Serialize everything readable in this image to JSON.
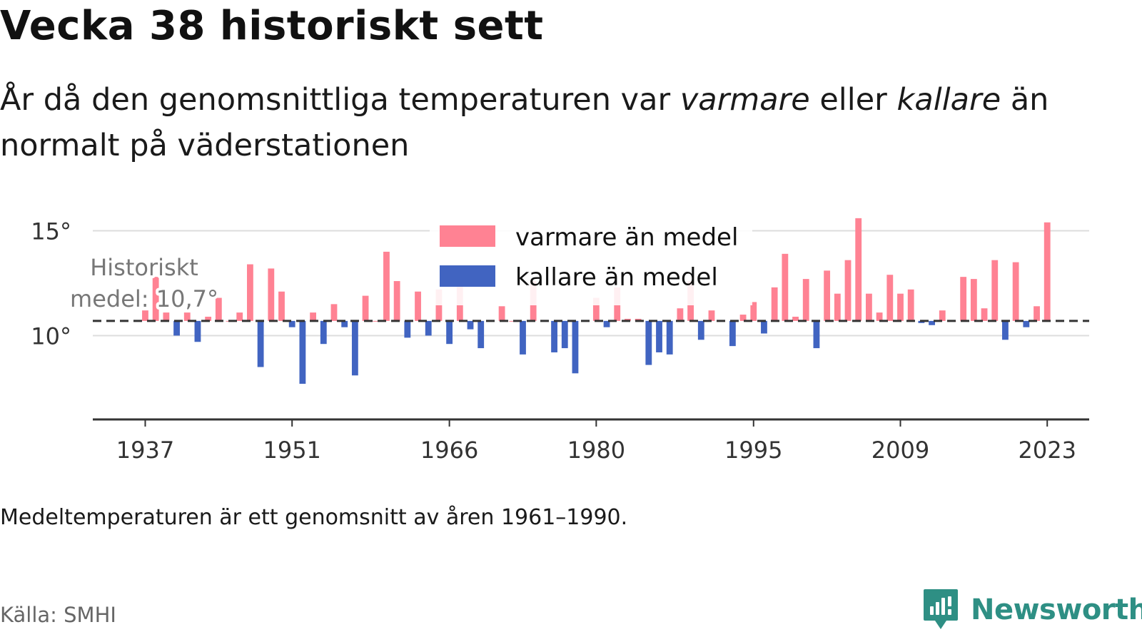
{
  "title": "Vecka 38 historiskt sett",
  "subtitle": {
    "before": "År då den genomsnittliga temperaturen var ",
    "warm_word": "varmare",
    "middle": " eller ",
    "cold_word": "kallare",
    "after": " än normalt på väderstationen"
  },
  "footnote": "Medeltemperaturen är ett genomsnitt av åren 1961–1990.",
  "source": "Källa: SMHI",
  "brand": {
    "name": "Newsworthy",
    "icon": "newsworthy-logo-icon",
    "color": "#2e8f84"
  },
  "chart_data": {
    "type": "bar",
    "baseline": 10.7,
    "baseline_label_lines": [
      "Historiskt",
      "medel: 10,7°"
    ],
    "xlim": [
      1932,
      2027
    ],
    "ylim": [
      6,
      15.8
    ],
    "x_ticks": [
      1937,
      1951,
      1966,
      1980,
      1995,
      2009,
      2023
    ],
    "y_ticks": [
      {
        "value": 10,
        "label": "10°"
      },
      {
        "value": 15,
        "label": "15°"
      }
    ],
    "grid": true,
    "legend_position": "top-center",
    "colors": {
      "warm": "#ff8293",
      "cold": "#4164c1",
      "baseline": "#333333",
      "grid": "#dddddd"
    },
    "series": [
      {
        "name": "varmare än medel",
        "key": "warm"
      },
      {
        "name": "kallare än medel",
        "key": "cold"
      }
    ],
    "x": [
      1937,
      1938,
      1939,
      1940,
      1941,
      1942,
      1943,
      1944,
      1945,
      1946,
      1947,
      1948,
      1949,
      1950,
      1951,
      1952,
      1953,
      1954,
      1955,
      1956,
      1957,
      1958,
      1959,
      1960,
      1961,
      1962,
      1963,
      1964,
      1965,
      1966,
      1967,
      1968,
      1969,
      1970,
      1971,
      1972,
      1973,
      1974,
      1975,
      1976,
      1977,
      1978,
      1979,
      1980,
      1981,
      1982,
      1983,
      1984,
      1985,
      1986,
      1987,
      1988,
      1989,
      1990,
      1991,
      1992,
      1993,
      1994,
      1995,
      1996,
      1997,
      1998,
      1999,
      2000,
      2001,
      2002,
      2003,
      2004,
      2005,
      2006,
      2007,
      2008,
      2009,
      2010,
      2011,
      2012,
      2013,
      2014,
      2015,
      2016,
      2017,
      2018,
      2019,
      2020,
      2021,
      2022,
      2023
    ],
    "values": [
      11.2,
      12.8,
      11.1,
      10.0,
      11.1,
      9.7,
      10.9,
      11.8,
      10.7,
      11.1,
      13.4,
      8.5,
      13.2,
      12.1,
      10.4,
      7.7,
      11.1,
      9.6,
      11.5,
      10.4,
      8.1,
      11.9,
      10.7,
      14.0,
      12.6,
      9.9,
      12.1,
      10.0,
      12.2,
      9.6,
      12.5,
      10.3,
      9.4,
      10.7,
      11.4,
      10.7,
      9.1,
      12.6,
      10.7,
      9.2,
      9.4,
      8.2,
      10.7,
      11.8,
      10.4,
      12.3,
      10.8,
      10.8,
      8.6,
      9.2,
      9.1,
      11.3,
      12.6,
      9.8,
      11.2,
      10.7,
      9.5,
      11.0,
      11.6,
      10.1,
      12.3,
      13.9,
      10.9,
      12.7,
      9.4,
      13.1,
      12.0,
      13.6,
      15.6,
      12.0,
      11.1,
      12.9,
      12.0,
      12.2,
      10.6,
      10.5,
      11.2,
      10.7,
      12.8,
      12.7,
      11.3,
      13.6,
      9.8,
      13.5,
      10.4,
      11.4,
      15.4
    ]
  }
}
